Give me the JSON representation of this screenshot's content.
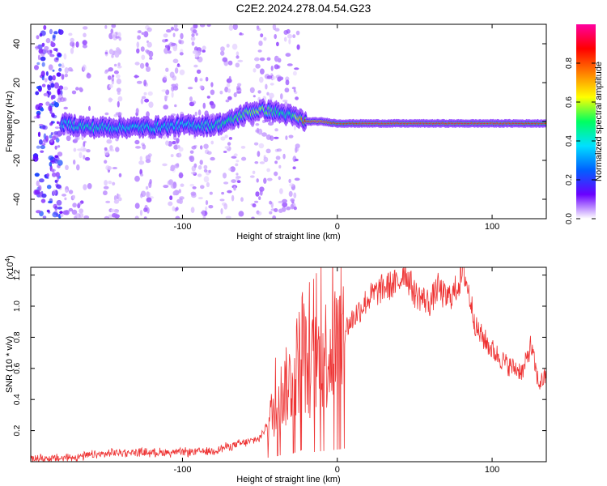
{
  "title": "C2E2.2024.278.04.54.G23",
  "chart_data": [
    {
      "type": "heatmap",
      "name": "spectrogram",
      "title": "C2E2.2024.278.04.54.G23",
      "xlabel": "Height of straight line (km)",
      "ylabel": "Frequency (Hz)",
      "xlim": [
        -198,
        135
      ],
      "ylim": [
        -50,
        50
      ],
      "xticks": [
        -100,
        0,
        100
      ],
      "yticks": [
        -40,
        -20,
        0,
        20,
        40
      ],
      "colorbar": {
        "label": "Normalized spectral amplitude",
        "range": [
          0,
          1
        ],
        "ticks": [
          "0.0",
          "0.2",
          "0.4",
          "0.6",
          "0.8"
        ],
        "tick_values": [
          0.0,
          0.2,
          0.4,
          0.6,
          0.8
        ],
        "colors": [
          "#ffffff",
          "#6a00ff",
          "#0060ff",
          "#00e0ff",
          "#00ff60",
          "#ffff00",
          "#ff7f00",
          "#ff0000",
          "#ff00a0"
        ]
      },
      "ridge": {
        "x": [
          -178,
          -160,
          -140,
          -120,
          -100,
          -80,
          -70,
          -60,
          -50,
          -40,
          -30,
          -20,
          -10,
          0,
          20,
          50,
          80,
          110,
          135
        ],
        "y": [
          -1,
          -3,
          -3,
          -3,
          -2,
          -2,
          0,
          4,
          6,
          5,
          3,
          0,
          0,
          -1,
          -1,
          -1,
          -1,
          -1,
          -1
        ],
        "amplitude": [
          0.4,
          0.45,
          0.4,
          0.42,
          0.4,
          0.45,
          0.5,
          0.55,
          0.6,
          0.5,
          0.45,
          0.9,
          0.95,
          0.85,
          0.9,
          0.9,
          0.9,
          0.9,
          0.85
        ]
      }
    },
    {
      "type": "line",
      "name": "snr",
      "xlabel": "Height of straight line (km)",
      "ylabel": "SNR (10 * v/v)",
      "multiplier_label": "(x10",
      "multiplier_exp": "4",
      "xlim": [
        -198,
        135
      ],
      "ylim": [
        0,
        1.25
      ],
      "xticks": [
        -100,
        0,
        100
      ],
      "yticks": [
        0.2,
        0.4,
        0.6,
        0.8,
        1.0,
        1.2
      ],
      "ytick_labels": [
        "0.2",
        "0.4",
        "0.6",
        "0.8",
        "1.0",
        "1.2"
      ],
      "color": "#ee3333",
      "series": {
        "x": [
          -198,
          -180,
          -160,
          -140,
          -120,
          -100,
          -80,
          -70,
          -60,
          -50,
          -45,
          -40,
          -35,
          -30,
          -25,
          -22,
          -20,
          -15,
          -10,
          -5,
          0,
          10,
          20,
          30,
          40,
          43,
          50,
          60,
          65,
          70,
          75,
          80,
          82,
          90,
          100,
          110,
          120,
          125,
          130,
          135
        ],
        "y": [
          0.02,
          0.02,
          0.04,
          0.06,
          0.06,
          0.06,
          0.07,
          0.1,
          0.12,
          0.15,
          0.25,
          0.35,
          0.45,
          0.52,
          0.65,
          0.78,
          0.6,
          0.62,
          0.68,
          0.72,
          0.78,
          0.92,
          1.05,
          1.12,
          1.15,
          1.24,
          1.08,
          1.02,
          1.12,
          1.05,
          1.08,
          1.18,
          1.22,
          0.85,
          0.72,
          0.62,
          0.58,
          0.75,
          0.5,
          0.55
        ]
      }
    }
  ]
}
